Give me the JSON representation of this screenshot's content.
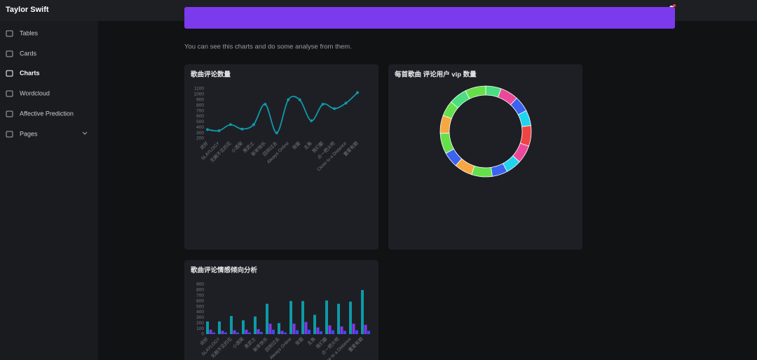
{
  "header": {
    "title": "Taylor Swift"
  },
  "sidebar": {
    "items": [
      "Tables",
      "Cards",
      "Charts",
      "Wordcloud",
      "Affective Prediction",
      "Pages"
    ],
    "active": 2
  },
  "intro": "You can see this charts and do some analyse from them.",
  "charts": [
    {
      "type": "line",
      "title": "歌曲评论数量",
      "color": "#0e9aa7",
      "categories": [
        "说好",
        "SLAYLOGY",
        "无期不见的花",
        "小酒窝",
        "黑武士",
        "新年快乐",
        "回到过去",
        "Always Online",
        "背面",
        "主角",
        "我们都",
        "点一把火吧",
        "Close to a Distance",
        "蓄爱有期"
      ],
      "values": [
        360,
        340,
        450,
        370,
        450,
        820,
        300,
        900,
        900,
        520,
        820,
        740,
        840,
        1030
      ],
      "ylim": [
        200,
        1100
      ],
      "yticks": [
        200,
        300,
        400,
        500,
        600,
        700,
        800,
        900,
        1000,
        1100
      ]
    },
    {
      "type": "pie",
      "title": "每首歌曲 评论用户 vip 数量",
      "values": [
        6,
        7,
        6,
        6,
        8,
        7,
        6,
        6,
        8,
        7,
        6,
        8,
        7,
        6,
        7,
        8
      ],
      "colors": [
        "#4ade80",
        "#ec4899",
        "#3b63f0",
        "#22d3ee",
        "#ef4444",
        "#ec4899",
        "#22d3ee",
        "#3b63f0",
        "#65e04a",
        "#f5a742",
        "#3b63f0",
        "#65e04a",
        "#f5a742",
        "#65e04a",
        "#4ade80",
        "#65e04a"
      ]
    },
    {
      "type": "bar",
      "title": "歌曲评论情感倾向分析",
      "categories": [
        "说好",
        "SLAYLOGY",
        "无期不见的花",
        "小酒窝",
        "黑武士",
        "新年快乐",
        "回到过去",
        "Always Online",
        "背面",
        "主角",
        "我们都",
        "点一把火吧",
        "Close to a Distance",
        "蓄爱有期"
      ],
      "series": [
        {
          "color": "#0e9aa7",
          "values": [
            230,
            230,
            330,
            250,
            320,
            550,
            200,
            600,
            600,
            350,
            610,
            550,
            590,
            800
          ]
        },
        {
          "color": "#7c3aed",
          "values": [
            80,
            60,
            70,
            80,
            90,
            190,
            60,
            190,
            220,
            120,
            160,
            140,
            190,
            170
          ]
        },
        {
          "color": "#3b4cf0",
          "values": [
            30,
            30,
            30,
            30,
            40,
            80,
            30,
            70,
            80,
            50,
            70,
            60,
            70,
            60
          ]
        }
      ],
      "ylim": [
        0,
        900
      ],
      "yticks": [
        0,
        100,
        200,
        300,
        400,
        500,
        600,
        700,
        800,
        900
      ]
    }
  ]
}
